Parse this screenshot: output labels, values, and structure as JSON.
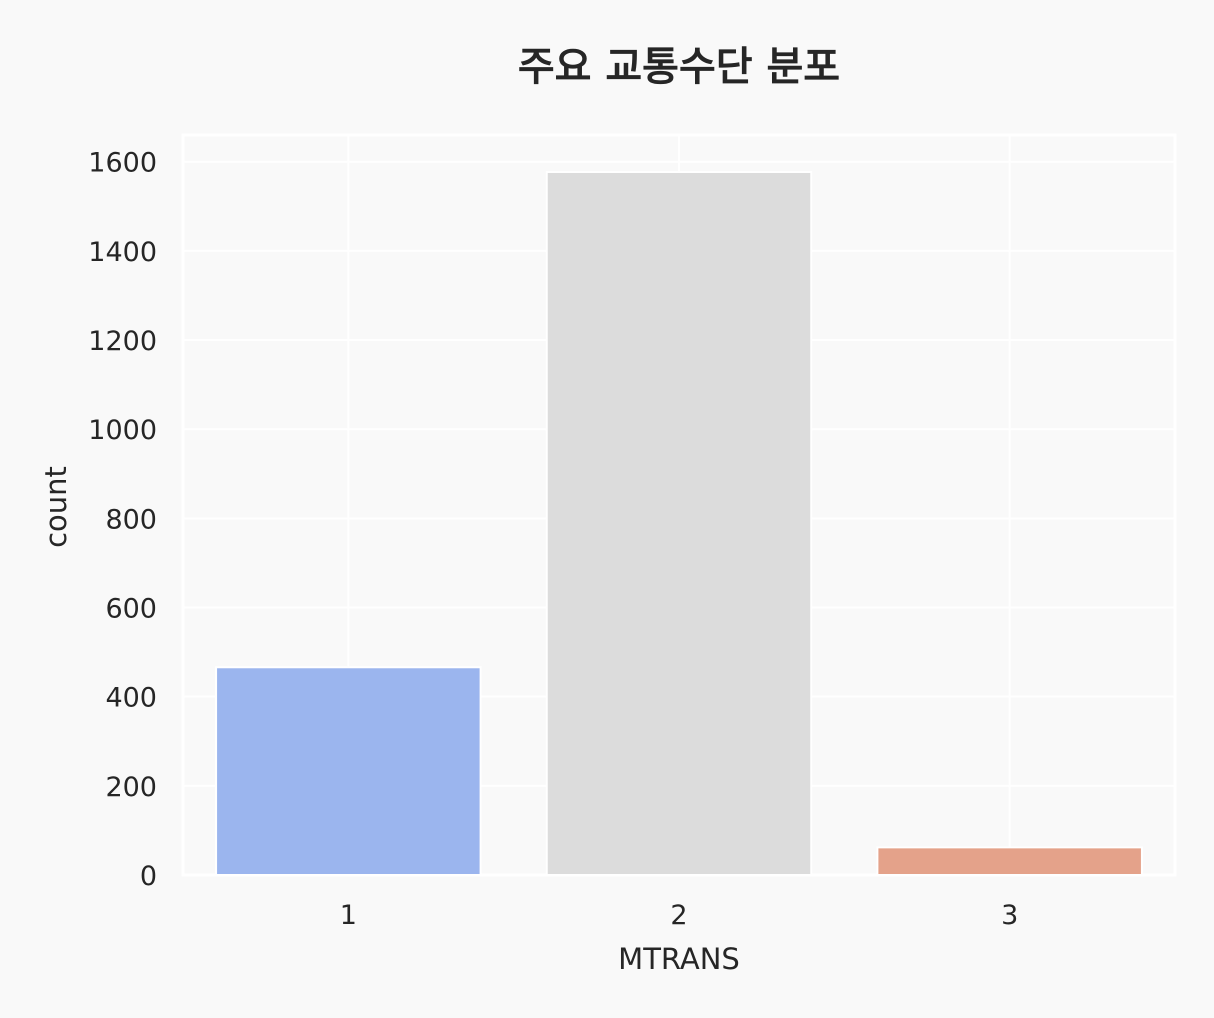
{
  "chart_data": {
    "type": "bar",
    "title": "주요 교통수단 분포",
    "xlabel": "MTRANS",
    "ylabel": "count",
    "categories": [
      "1",
      "2",
      "3"
    ],
    "values": [
      466,
      1577,
      62
    ],
    "ylim": [
      0,
      1660
    ],
    "yticks": [
      0,
      200,
      400,
      600,
      800,
      1000,
      1200,
      1400,
      1600
    ],
    "ytick_labels": [
      "0",
      "200",
      "400",
      "600",
      "800",
      "1000",
      "1200",
      "1400",
      "1600"
    ],
    "colors": [
      "#9bb5ee",
      "#dcdcdc",
      "#e4a28a"
    ],
    "grid": true,
    "background": "#f9f9f9"
  }
}
